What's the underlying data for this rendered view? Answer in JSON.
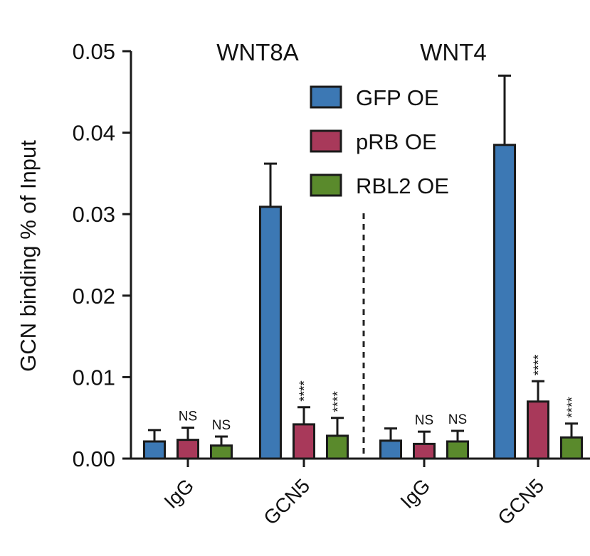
{
  "chart_data": {
    "type": "bar",
    "ylabel": "GCN binding % of Input",
    "ylim": [
      0,
      0.05
    ],
    "yticks": [
      "0.00",
      "0.01",
      "0.02",
      "0.03",
      "0.04",
      "0.05"
    ],
    "categories": [
      "IgG",
      "GCN5",
      "IgG",
      "GCN5"
    ],
    "panels": [
      {
        "title": "WNT8A",
        "category_indices": [
          0,
          1
        ]
      },
      {
        "title": "WNT4",
        "category_indices": [
          2,
          3
        ]
      }
    ],
    "legend_placement": "top-right",
    "series": [
      {
        "name": "GFP OE",
        "color": "#3c78b4",
        "values": [
          0.0021,
          0.0309,
          0.0022,
          0.0385
        ],
        "errors": [
          0.0014,
          0.0053,
          0.0015,
          0.0085
        ],
        "significance": [
          "",
          "",
          "",
          ""
        ]
      },
      {
        "name": "pRB OE",
        "color": "#a8395a",
        "values": [
          0.0023,
          0.0042,
          0.0018,
          0.007
        ],
        "errors": [
          0.0015,
          0.0021,
          0.0015,
          0.0025
        ],
        "significance": [
          "NS",
          "****",
          "NS",
          "****"
        ]
      },
      {
        "name": "RBL2 OE",
        "color": "#5a8a2c",
        "values": [
          0.0016,
          0.0028,
          0.0021,
          0.0026
        ],
        "errors": [
          0.0011,
          0.0022,
          0.0013,
          0.0017
        ],
        "significance": [
          "NS",
          "****",
          "NS",
          "****"
        ]
      }
    ]
  }
}
